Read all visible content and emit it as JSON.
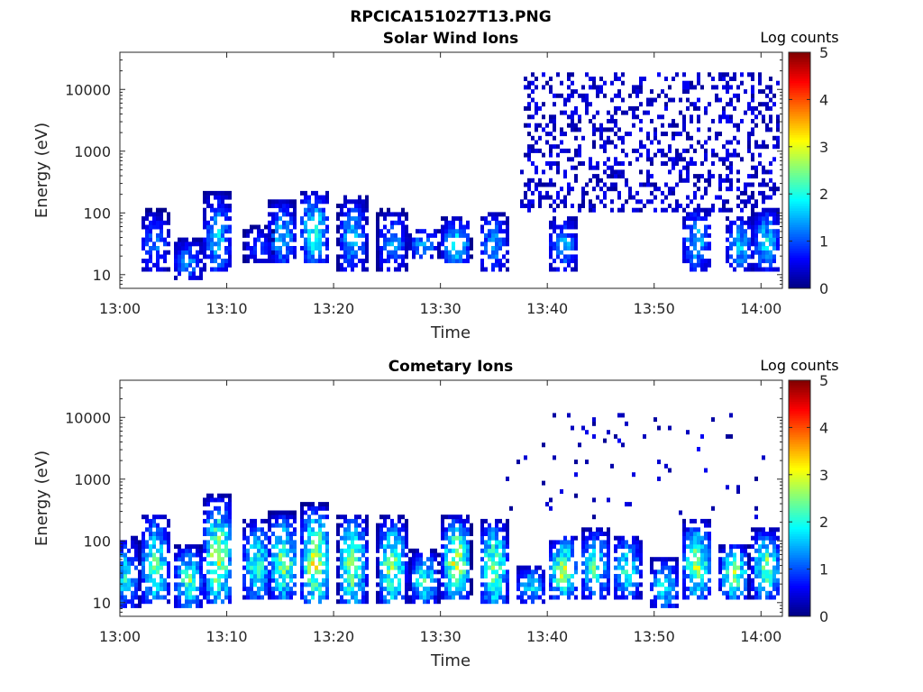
{
  "figure": {
    "title": "RPCICA151027T13.PNG"
  },
  "chart_data": [
    {
      "type": "heatmap",
      "title": "Solar Wind Ions",
      "xlabel": "Time",
      "ylabel": "Energy (eV)",
      "x_ticks": [
        "13:00",
        "13:10",
        "13:20",
        "13:30",
        "13:40",
        "13:50",
        "14:00"
      ],
      "x_range": [
        "13:00",
        "14:02"
      ],
      "y_scale": "log",
      "y_ticks": [
        "10",
        "100",
        "1000",
        "10000"
      ],
      "y_range": [
        6,
        40000
      ],
      "colorbar": {
        "label": "Log counts",
        "min": 0,
        "max": 5,
        "ticks": [
          "0",
          "1",
          "2",
          "3",
          "4",
          "5"
        ],
        "colormap": "jet"
      },
      "bursts": [
        {
          "t": 3.3,
          "e_lo": 15,
          "e_hi": 130,
          "peak": 1.5
        },
        {
          "t": 6.4,
          "e_lo": 10,
          "e_hi": 40,
          "peak": 1.7
        },
        {
          "t": 9.2,
          "e_lo": 14,
          "e_hi": 300,
          "peak": 2.0
        },
        {
          "t": 13.0,
          "e_lo": 20,
          "e_hi": 60,
          "peak": 1.2
        },
        {
          "t": 15.2,
          "e_lo": 18,
          "e_hi": 200,
          "peak": 2.0
        },
        {
          "t": 18.2,
          "e_lo": 20,
          "e_hi": 300,
          "peak": 2.6
        },
        {
          "t": 21.8,
          "e_lo": 15,
          "e_hi": 250,
          "peak": 2.0
        },
        {
          "t": 25.5,
          "e_lo": 15,
          "e_hi": 130,
          "peak": 1.8
        },
        {
          "t": 28.5,
          "e_lo": 22,
          "e_hi": 55,
          "peak": 1.9
        },
        {
          "t": 31.5,
          "e_lo": 18,
          "e_hi": 90,
          "peak": 2.4
        },
        {
          "t": 35.0,
          "e_lo": 15,
          "e_hi": 120,
          "peak": 1.8
        },
        {
          "t": 41.5,
          "e_lo": 15,
          "e_hi": 100,
          "peak": 1.9
        },
        {
          "t": 54.0,
          "e_lo": 15,
          "e_hi": 150,
          "peak": 2.0
        },
        {
          "t": 58.0,
          "e_lo": 15,
          "e_hi": 100,
          "peak": 2.0
        },
        {
          "t": 60.5,
          "e_lo": 15,
          "e_hi": 150,
          "peak": 2.1
        }
      ],
      "scatter_region": {
        "t_start": 37.5,
        "t_end": 62,
        "e_lo": 100,
        "e_hi": 20000,
        "level": 0.6
      }
    },
    {
      "type": "heatmap",
      "title": "Cometary Ions",
      "xlabel": "Time",
      "ylabel": "Energy (eV)",
      "x_ticks": [
        "13:00",
        "13:10",
        "13:20",
        "13:30",
        "13:40",
        "13:50",
        "14:00"
      ],
      "x_range": [
        "13:00",
        "14:02"
      ],
      "y_scale": "log",
      "y_ticks": [
        "10",
        "100",
        "1000",
        "10000"
      ],
      "y_range": [
        6,
        40000
      ],
      "colorbar": {
        "label": "Log counts",
        "min": 0,
        "max": 5,
        "ticks": [
          "0",
          "1",
          "2",
          "3",
          "4",
          "5"
        ],
        "colormap": "jet"
      },
      "bursts": [
        {
          "t": 0.5,
          "e_lo": 10,
          "e_hi": 150,
          "peak": 2.2
        },
        {
          "t": 3.3,
          "e_lo": 12,
          "e_hi": 400,
          "peak": 2.8
        },
        {
          "t": 6.4,
          "e_lo": 10,
          "e_hi": 100,
          "peak": 2.8
        },
        {
          "t": 9.2,
          "e_lo": 12,
          "e_hi": 900,
          "peak": 3.5
        },
        {
          "t": 12.8,
          "e_lo": 15,
          "e_hi": 300,
          "peak": 2.7
        },
        {
          "t": 15.3,
          "e_lo": 15,
          "e_hi": 400,
          "peak": 3.2
        },
        {
          "t": 18.3,
          "e_lo": 12,
          "e_hi": 600,
          "peak": 3.8
        },
        {
          "t": 21.8,
          "e_lo": 12,
          "e_hi": 400,
          "peak": 3.4
        },
        {
          "t": 25.5,
          "e_lo": 12,
          "e_hi": 350,
          "peak": 3.2
        },
        {
          "t": 28.5,
          "e_lo": 12,
          "e_hi": 80,
          "peak": 2.6
        },
        {
          "t": 31.5,
          "e_lo": 15,
          "e_hi": 350,
          "peak": 3.7
        },
        {
          "t": 35.0,
          "e_lo": 12,
          "e_hi": 300,
          "peak": 3.3
        },
        {
          "t": 38.5,
          "e_lo": 12,
          "e_hi": 40,
          "peak": 2.2
        },
        {
          "t": 41.5,
          "e_lo": 15,
          "e_hi": 150,
          "peak": 3.3
        },
        {
          "t": 44.5,
          "e_lo": 15,
          "e_hi": 200,
          "peak": 2.7
        },
        {
          "t": 47.5,
          "e_lo": 15,
          "e_hi": 150,
          "peak": 2.6
        },
        {
          "t": 51.0,
          "e_lo": 10,
          "e_hi": 60,
          "peak": 2.3
        },
        {
          "t": 54.0,
          "e_lo": 15,
          "e_hi": 300,
          "peak": 3.2
        },
        {
          "t": 57.5,
          "e_lo": 15,
          "e_hi": 100,
          "peak": 3.3
        },
        {
          "t": 60.5,
          "e_lo": 15,
          "e_hi": 200,
          "peak": 3.1
        }
      ],
      "scatter_region": {
        "t_start": 36,
        "t_end": 62,
        "e_lo": 200,
        "e_hi": 12000,
        "level": 0.06
      }
    }
  ]
}
